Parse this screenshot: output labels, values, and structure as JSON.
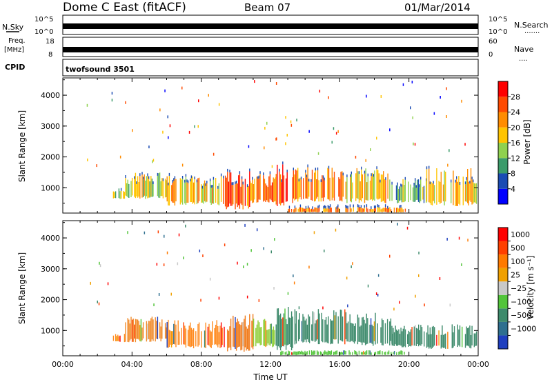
{
  "header": {
    "station": "Dome C East (fitACF)",
    "beam": "Beam 07",
    "date": "01/Mar/2014"
  },
  "top_panels": {
    "nsky_label": "N.Sky",
    "nsky_ticks": [
      "10^5",
      "10^0"
    ],
    "nsearch_label": "N.Search",
    "nsearch_ticks": [
      "10^5",
      "10^0"
    ],
    "nsearch_dots": ".......",
    "freq_label": "Freq.",
    "freq_unit": "[MHz]",
    "freq_ticks": [
      "18",
      "8"
    ],
    "nave_label": "Nave",
    "nave_ticks": [
      "60",
      "0"
    ],
    "nave_dots": "....",
    "cpid_label": "CPID",
    "cpid_value": "twofsound 3501"
  },
  "chart_data": [
    {
      "type": "heatmap",
      "title": "",
      "xlabel": "",
      "ylabel": "Slant Range [km]",
      "xlim": [
        0,
        24
      ],
      "ylim": [
        180,
        4560
      ],
      "x_ticks": [
        0,
        4,
        8,
        12,
        16,
        20,
        24
      ],
      "y_ticks": [
        1000,
        2000,
        3000,
        4000
      ],
      "y_tick_labels": [
        "1000",
        "2000",
        "3000",
        "4000"
      ],
      "colorbar": {
        "label": "Power [dB]",
        "ticks": [
          "4",
          "8",
          "12",
          "16",
          "20",
          "24",
          "28"
        ],
        "colors": [
          "#0000ff",
          "#1a4bb3",
          "#3b9b6a",
          "#8fd14f",
          "#ffc400",
          "#ff8c00",
          "#ff4a00",
          "#ff0000"
        ]
      },
      "echo_regions": [
        {
          "t0": 2.9,
          "t1": 3.6,
          "r0": 620,
          "r1": 1000,
          "level": 0.45
        },
        {
          "t0": 3.6,
          "t1": 6.0,
          "r0": 640,
          "r1": 1500,
          "level": 0.5
        },
        {
          "t0": 6.0,
          "t1": 9.3,
          "r0": 420,
          "r1": 1400,
          "level": 0.62
        },
        {
          "t0": 9.3,
          "t1": 10.8,
          "r0": 300,
          "r1": 1600,
          "level": 0.78
        },
        {
          "t0": 10.8,
          "t1": 12.3,
          "r0": 500,
          "r1": 1450,
          "level": 0.72
        },
        {
          "t0": 12.3,
          "t1": 13.3,
          "r0": 350,
          "r1": 1800,
          "level": 0.85
        },
        {
          "t0": 13.3,
          "t1": 16.2,
          "r0": 550,
          "r1": 1700,
          "level": 0.7
        },
        {
          "t0": 16.2,
          "t1": 18.8,
          "r0": 500,
          "r1": 1650,
          "level": 0.6
        },
        {
          "t0": 18.8,
          "t1": 21.0,
          "r0": 500,
          "r1": 1300,
          "level": 0.35
        },
        {
          "t0": 21.0,
          "t1": 23.9,
          "r0": 400,
          "r1": 1650,
          "level": 0.55
        },
        {
          "t0": 13.0,
          "t1": 19.8,
          "r0": 200,
          "r1": 380,
          "level": 0.68
        }
      ]
    },
    {
      "type": "heatmap",
      "title": "",
      "xlabel": "Time UT",
      "ylabel": "Slant Range [km]",
      "xlim": [
        0,
        24
      ],
      "ylim": [
        180,
        4560
      ],
      "x_ticks": [
        0,
        4,
        8,
        12,
        16,
        20,
        24
      ],
      "x_tick_labels": [
        "00:00",
        "04:00",
        "08:00",
        "12:00",
        "16:00",
        "20:00",
        "00:00"
      ],
      "y_ticks": [
        1000,
        2000,
        3000,
        4000
      ],
      "y_tick_labels": [
        "1000",
        "2000",
        "3000",
        "4000"
      ],
      "colorbar": {
        "label": "Velocity [m s⁻¹]",
        "ticks": [
          "1000",
          "500",
          "100",
          "25",
          "−25",
          "−100",
          "−500",
          "−1000"
        ],
        "colors": [
          "#1f3fbf",
          "#2e6f8f",
          "#3d8a6b",
          "#52c43a",
          "#c8c8c8",
          "#f0a000",
          "#ff7a00",
          "#ff4000",
          "#ff0000"
        ]
      },
      "echo_regions": [
        {
          "t0": 2.9,
          "t1": 3.6,
          "r0": 620,
          "r1": 950,
          "color": "#ff8a1f"
        },
        {
          "t0": 3.6,
          "t1": 6.0,
          "r0": 620,
          "r1": 1450,
          "color": "#f08a2a"
        },
        {
          "t0": 6.0,
          "t1": 9.3,
          "r0": 420,
          "r1": 1350,
          "color": "#ff8a1f"
        },
        {
          "t0": 9.3,
          "t1": 11.0,
          "r0": 300,
          "r1": 1550,
          "color": "#f07a1a"
        },
        {
          "t0": 11.0,
          "t1": 12.3,
          "r0": 450,
          "r1": 1400,
          "color": "#8fcf3a"
        },
        {
          "t0": 12.3,
          "t1": 13.4,
          "r0": 350,
          "r1": 1780,
          "color": "#3d8a6b"
        },
        {
          "t0": 13.4,
          "t1": 16.5,
          "r0": 550,
          "r1": 1700,
          "color": "#3d8a6b"
        },
        {
          "t0": 16.5,
          "t1": 19.0,
          "r0": 500,
          "r1": 1600,
          "color": "#3d8a6b"
        },
        {
          "t0": 19.0,
          "t1": 21.0,
          "r0": 450,
          "r1": 1200,
          "color": "#3d8a6b"
        },
        {
          "t0": 21.0,
          "t1": 23.9,
          "r0": 400,
          "r1": 1200,
          "color": "#3d8a6b"
        },
        {
          "t0": 12.5,
          "t1": 19.8,
          "r0": 200,
          "r1": 360,
          "color": "#52c43a"
        }
      ]
    }
  ]
}
